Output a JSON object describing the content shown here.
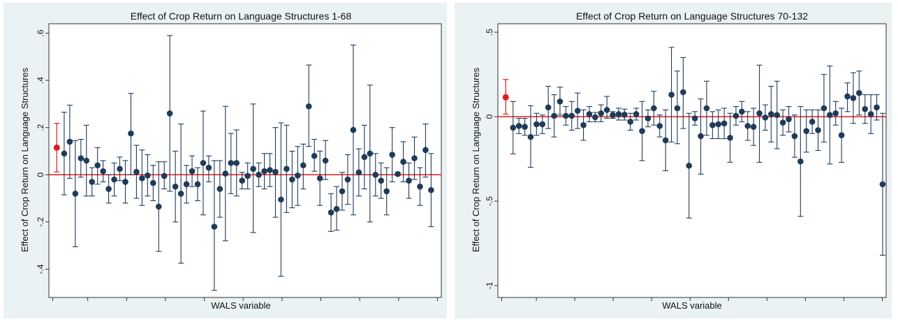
{
  "chart_data": [
    {
      "type": "scatter",
      "title": "Effect of Crop Return on Language Structures 1-68",
      "xlabel": "WALS variable",
      "ylabel": "Effect of Crop Return on Language Structures",
      "ylim": [
        -0.52,
        0.64
      ],
      "yticks": [
        -0.4,
        -0.2,
        0,
        0.2,
        0.4,
        0.6
      ],
      "ytick_labels": [
        "-.4",
        "-.2",
        "0",
        ".2",
        ".4",
        ".6"
      ],
      "xticks": [
        1,
        10,
        20,
        30,
        40,
        50,
        60,
        70,
        80,
        90,
        100
      ],
      "xlim": [
        0,
        101
      ],
      "zero_line_color": "#e41a1c",
      "highlight": {
        "x": 1,
        "y": 0.115,
        "lo": 0.012,
        "hi": 0.218,
        "color": "#e41a1c"
      },
      "series_color": "#1f3b57",
      "points": [
        {
          "x": 3,
          "y": 0.09,
          "lo": -0.085,
          "hi": 0.265
        },
        {
          "x": 4.5,
          "y": 0.14,
          "lo": -0.015,
          "hi": 0.295
        },
        {
          "x": 6,
          "y": -0.08,
          "lo": -0.305,
          "hi": 0.145
        },
        {
          "x": 7.5,
          "y": 0.07,
          "lo": -0.01,
          "hi": 0.15
        },
        {
          "x": 9,
          "y": 0.06,
          "lo": -0.09,
          "hi": 0.21
        },
        {
          "x": 10.5,
          "y": -0.03,
          "lo": -0.09,
          "hi": 0.03
        },
        {
          "x": 12,
          "y": 0.04,
          "lo": -0.04,
          "hi": 0.115
        },
        {
          "x": 13.5,
          "y": 0.015,
          "lo": -0.03,
          "hi": 0.06
        },
        {
          "x": 15,
          "y": -0.06,
          "lo": -0.12,
          "hi": 0.0
        },
        {
          "x": 16.5,
          "y": -0.02,
          "lo": -0.09,
          "hi": 0.05
        },
        {
          "x": 18,
          "y": 0.025,
          "lo": -0.025,
          "hi": 0.075
        },
        {
          "x": 19.5,
          "y": -0.03,
          "lo": -0.12,
          "hi": 0.06
        },
        {
          "x": 21,
          "y": 0.175,
          "lo": 0.0,
          "hi": 0.345
        },
        {
          "x": 22.5,
          "y": 0.012,
          "lo": -0.1,
          "hi": 0.125
        },
        {
          "x": 24,
          "y": -0.015,
          "lo": -0.13,
          "hi": 0.105
        },
        {
          "x": 25.5,
          "y": -0.003,
          "lo": -0.09,
          "hi": 0.085
        },
        {
          "x": 27,
          "y": -0.035,
          "lo": -0.11,
          "hi": 0.04
        },
        {
          "x": 28.5,
          "y": -0.135,
          "lo": -0.325,
          "hi": 0.055
        },
        {
          "x": 30,
          "y": -0.005,
          "lo": -0.06,
          "hi": 0.055
        },
        {
          "x": 31.5,
          "y": 0.26,
          "lo": -0.07,
          "hi": 0.59
        },
        {
          "x": 33,
          "y": -0.05,
          "lo": -0.2,
          "hi": 0.1
        },
        {
          "x": 34.5,
          "y": -0.08,
          "lo": -0.375,
          "hi": 0.215
        },
        {
          "x": 36,
          "y": -0.04,
          "lo": -0.12,
          "hi": 0.04
        },
        {
          "x": 37.5,
          "y": 0.015,
          "lo": -0.05,
          "hi": 0.08
        },
        {
          "x": 39,
          "y": -0.04,
          "lo": -0.11,
          "hi": 0.03
        },
        {
          "x": 40.5,
          "y": 0.05,
          "lo": -0.17,
          "hi": 0.27
        },
        {
          "x": 42,
          "y": 0.03,
          "lo": -0.03,
          "hi": 0.08
        },
        {
          "x": 43.5,
          "y": -0.22,
          "lo": -0.49,
          "hi": 0.06
        },
        {
          "x": 45,
          "y": -0.06,
          "lo": -0.18,
          "hi": 0.06
        },
        {
          "x": 46.5,
          "y": 0.005,
          "lo": -0.28,
          "hi": 0.29
        },
        {
          "x": 48,
          "y": 0.05,
          "lo": -0.08,
          "hi": 0.175
        },
        {
          "x": 49.5,
          "y": 0.05,
          "lo": -0.09,
          "hi": 0.19
        },
        {
          "x": 51,
          "y": -0.025,
          "lo": -0.06,
          "hi": 0.01
        },
        {
          "x": 52.5,
          "y": -0.005,
          "lo": -0.06,
          "hi": 0.05
        },
        {
          "x": 54,
          "y": 0.025,
          "lo": -0.245,
          "hi": 0.3
        },
        {
          "x": 55.5,
          "y": 0.0,
          "lo": -0.05,
          "hi": 0.05
        },
        {
          "x": 57,
          "y": 0.015,
          "lo": -0.06,
          "hi": 0.09
        },
        {
          "x": 58.5,
          "y": 0.02,
          "lo": -0.05,
          "hi": 0.09
        },
        {
          "x": 60,
          "y": 0.012,
          "lo": -0.18,
          "hi": 0.2
        },
        {
          "x": 61.5,
          "y": -0.105,
          "lo": -0.43,
          "hi": 0.22
        },
        {
          "x": 63,
          "y": 0.025,
          "lo": -0.16,
          "hi": 0.21
        },
        {
          "x": 64.5,
          "y": -0.02,
          "lo": -0.14,
          "hi": 0.1
        },
        {
          "x": 66,
          "y": -0.003,
          "lo": -0.13,
          "hi": 0.12
        },
        {
          "x": 67.5,
          "y": 0.04,
          "lo": -0.06,
          "hi": 0.13
        },
        {
          "x": 69,
          "y": 0.29,
          "lo": 0.12,
          "hi": 0.465
        },
        {
          "x": 70.5,
          "y": 0.08,
          "lo": 0.015,
          "hi": 0.15
        },
        {
          "x": 72,
          "y": -0.015,
          "lo": -0.13,
          "hi": 0.1
        },
        {
          "x": 73.5,
          "y": 0.06,
          "lo": -0.02,
          "hi": 0.145
        },
        {
          "x": 75,
          "y": -0.16,
          "lo": -0.24,
          "hi": -0.08
        },
        {
          "x": 76.5,
          "y": -0.145,
          "lo": -0.235,
          "hi": -0.05
        },
        {
          "x": 78,
          "y": -0.07,
          "lo": -0.15,
          "hi": 0.01
        },
        {
          "x": 79.5,
          "y": -0.02,
          "lo": -0.125,
          "hi": 0.085
        },
        {
          "x": 81,
          "y": 0.19,
          "lo": -0.17,
          "hi": 0.55
        },
        {
          "x": 82.5,
          "y": 0.01,
          "lo": -0.09,
          "hi": 0.11
        },
        {
          "x": 84,
          "y": 0.075,
          "lo": -0.06,
          "hi": 0.21
        },
        {
          "x": 85.5,
          "y": 0.09,
          "lo": -0.2,
          "hi": 0.38
        },
        {
          "x": 87,
          "y": 0.0,
          "lo": -0.09,
          "hi": 0.09
        },
        {
          "x": 88.5,
          "y": -0.025,
          "lo": -0.1,
          "hi": 0.05
        },
        {
          "x": 90,
          "y": -0.07,
          "lo": -0.17,
          "hi": 0.03
        },
        {
          "x": 91.5,
          "y": 0.085,
          "lo": -0.03,
          "hi": 0.2
        },
        {
          "x": 93,
          "y": 0.003,
          "lo": -0.003,
          "hi": 0.009
        },
        {
          "x": 94.5,
          "y": 0.055,
          "lo": -0.03,
          "hi": 0.14
        },
        {
          "x": 96,
          "y": -0.025,
          "lo": -0.1,
          "hi": 0.05
        },
        {
          "x": 97.5,
          "y": 0.07,
          "lo": -0.02,
          "hi": 0.16
        },
        {
          "x": 99,
          "y": -0.05,
          "lo": -0.13,
          "hi": 0.03
        },
        {
          "x": 100.5,
          "y": 0.105,
          "lo": -0.01,
          "hi": 0.215
        },
        {
          "x": 102,
          "y": -0.065,
          "lo": -0.22,
          "hi": 0.09
        }
      ]
    },
    {
      "type": "scatter",
      "title": "Effect of Crop Return on Language Structures 70-132",
      "xlabel": "WALS variable",
      "ylabel": "Effect of Crop Return on Language Structures",
      "ylim": [
        -1.07,
        0.55
      ],
      "yticks": [
        -1,
        -0.5,
        0,
        0.5
      ],
      "ytick_labels": [
        "-1",
        "-.5",
        "0",
        ".5"
      ],
      "xticks": [
        1,
        10,
        20,
        30,
        40,
        50,
        60,
        70,
        80,
        90,
        100
      ],
      "xlim": [
        0,
        101
      ],
      "zero_line_color": "#e41a1c",
      "highlight": {
        "x": 1,
        "y": 0.115,
        "lo": 0.015,
        "hi": 0.22,
        "color": "#e41a1c"
      },
      "series_color": "#1f3b57",
      "points": [
        {
          "x": 3,
          "y": -0.065,
          "lo": -0.22,
          "hi": 0.09
        },
        {
          "x": 4.6,
          "y": -0.055,
          "lo": -0.1,
          "hi": -0.01
        },
        {
          "x": 6.2,
          "y": -0.06,
          "lo": -0.11,
          "hi": -0.01
        },
        {
          "x": 7.8,
          "y": -0.12,
          "lo": -0.3,
          "hi": 0.065
        },
        {
          "x": 9.4,
          "y": -0.045,
          "lo": -0.11,
          "hi": 0.02
        },
        {
          "x": 11,
          "y": -0.045,
          "lo": -0.1,
          "hi": 0.01
        },
        {
          "x": 12.6,
          "y": 0.055,
          "lo": -0.07,
          "hi": 0.18
        },
        {
          "x": 14.2,
          "y": 0.005,
          "lo": -0.12,
          "hi": 0.13
        },
        {
          "x": 15.8,
          "y": 0.09,
          "lo": 0.01,
          "hi": 0.175
        },
        {
          "x": 17.4,
          "y": 0.005,
          "lo": -0.05,
          "hi": 0.06
        },
        {
          "x": 19,
          "y": 0.005,
          "lo": -0.08,
          "hi": 0.09
        },
        {
          "x": 20.6,
          "y": 0.035,
          "lo": -0.07,
          "hi": 0.14
        },
        {
          "x": 22.2,
          "y": -0.05,
          "lo": -0.14,
          "hi": 0.04
        },
        {
          "x": 23.8,
          "y": 0.015,
          "lo": -0.03,
          "hi": 0.06
        },
        {
          "x": 25.4,
          "y": -0.003,
          "lo": -0.03,
          "hi": 0.025
        },
        {
          "x": 27,
          "y": 0.02,
          "lo": -0.03,
          "hi": 0.07
        },
        {
          "x": 28.6,
          "y": 0.04,
          "lo": -0.01,
          "hi": 0.12
        },
        {
          "x": 30.2,
          "y": 0.01,
          "lo": -0.01,
          "hi": 0.03
        },
        {
          "x": 31.8,
          "y": 0.015,
          "lo": -0.02,
          "hi": 0.05
        },
        {
          "x": 33.4,
          "y": 0.012,
          "lo": -0.02,
          "hi": 0.045
        },
        {
          "x": 35,
          "y": -0.03,
          "lo": -0.08,
          "hi": 0.02
        },
        {
          "x": 36.6,
          "y": 0.015,
          "lo": -0.02,
          "hi": 0.05
        },
        {
          "x": 38.2,
          "y": -0.085,
          "lo": -0.26,
          "hi": 0.09
        },
        {
          "x": 39.8,
          "y": -0.01,
          "lo": -0.06,
          "hi": 0.04
        },
        {
          "x": 41.4,
          "y": 0.05,
          "lo": -0.05,
          "hi": 0.15
        },
        {
          "x": 43,
          "y": -0.055,
          "lo": -0.12,
          "hi": 0.01
        },
        {
          "x": 44.6,
          "y": -0.14,
          "lo": -0.32,
          "hi": 0.04
        },
        {
          "x": 46.2,
          "y": 0.13,
          "lo": -0.15,
          "hi": 0.41
        },
        {
          "x": 47.8,
          "y": 0.05,
          "lo": -0.16,
          "hi": 0.27
        },
        {
          "x": 49.4,
          "y": 0.145,
          "lo": -0.07,
          "hi": 0.35
        },
        {
          "x": 51,
          "y": -0.29,
          "lo": -0.6,
          "hi": 0.02
        },
        {
          "x": 52.6,
          "y": -0.01,
          "lo": -0.05,
          "hi": 0.03
        },
        {
          "x": 54.2,
          "y": -0.115,
          "lo": -0.34,
          "hi": 0.105
        },
        {
          "x": 55.8,
          "y": 0.05,
          "lo": -0.11,
          "hi": 0.21
        },
        {
          "x": 57.4,
          "y": -0.05,
          "lo": -0.13,
          "hi": 0.03
        },
        {
          "x": 59,
          "y": -0.045,
          "lo": -0.13,
          "hi": 0.04
        },
        {
          "x": 60.6,
          "y": -0.04,
          "lo": -0.13,
          "hi": 0.05
        },
        {
          "x": 62.2,
          "y": -0.125,
          "lo": -0.27,
          "hi": 0.02
        },
        {
          "x": 63.8,
          "y": 0.005,
          "lo": -0.05,
          "hi": 0.06
        },
        {
          "x": 65.4,
          "y": 0.03,
          "lo": -0.03,
          "hi": 0.09
        },
        {
          "x": 67,
          "y": -0.055,
          "lo": -0.14,
          "hi": 0.03
        },
        {
          "x": 68.6,
          "y": -0.06,
          "lo": -0.17,
          "hi": 0.05
        },
        {
          "x": 70.2,
          "y": 0.02,
          "lo": -0.27,
          "hi": 0.305
        },
        {
          "x": 71.8,
          "y": -0.005,
          "lo": -0.08,
          "hi": 0.07
        },
        {
          "x": 73.4,
          "y": 0.015,
          "lo": -0.15,
          "hi": 0.18
        },
        {
          "x": 75,
          "y": 0.01,
          "lo": -0.19,
          "hi": 0.21
        },
        {
          "x": 76.6,
          "y": -0.035,
          "lo": -0.11,
          "hi": 0.04
        },
        {
          "x": 78.2,
          "y": -0.015,
          "lo": -0.09,
          "hi": 0.06
        },
        {
          "x": 79.8,
          "y": -0.115,
          "lo": -0.24,
          "hi": 0.01
        },
        {
          "x": 81.4,
          "y": -0.265,
          "lo": -0.59,
          "hi": 0.06
        },
        {
          "x": 83,
          "y": -0.085,
          "lo": -0.21,
          "hi": 0.04
        },
        {
          "x": 84.6,
          "y": -0.03,
          "lo": -0.1,
          "hi": 0.04
        },
        {
          "x": 86.2,
          "y": -0.08,
          "lo": -0.2,
          "hi": 0.04
        },
        {
          "x": 87.8,
          "y": 0.05,
          "lo": -0.15,
          "hi": 0.25
        },
        {
          "x": 89.4,
          "y": 0.01,
          "lo": -0.28,
          "hi": 0.3
        },
        {
          "x": 91,
          "y": 0.02,
          "lo": -0.05,
          "hi": 0.09
        },
        {
          "x": 92.6,
          "y": -0.11,
          "lo": -0.27,
          "hi": 0.05
        },
        {
          "x": 94.2,
          "y": 0.12,
          "lo": 0.03,
          "hi": 0.2
        },
        {
          "x": 95.8,
          "y": 0.11,
          "lo": -0.04,
          "hi": 0.26
        },
        {
          "x": 97.4,
          "y": 0.14,
          "lo": 0.01,
          "hi": 0.27
        },
        {
          "x": 99,
          "y": 0.045,
          "lo": -0.04,
          "hi": 0.13
        },
        {
          "x": 100.6,
          "y": 0.015,
          "lo": -0.1,
          "hi": 0.13
        },
        {
          "x": 102.2,
          "y": 0.055,
          "lo": -0.02,
          "hi": 0.13
        },
        {
          "x": 103.8,
          "y": -0.4,
          "lo": -0.82,
          "hi": 0.02
        }
      ]
    }
  ]
}
